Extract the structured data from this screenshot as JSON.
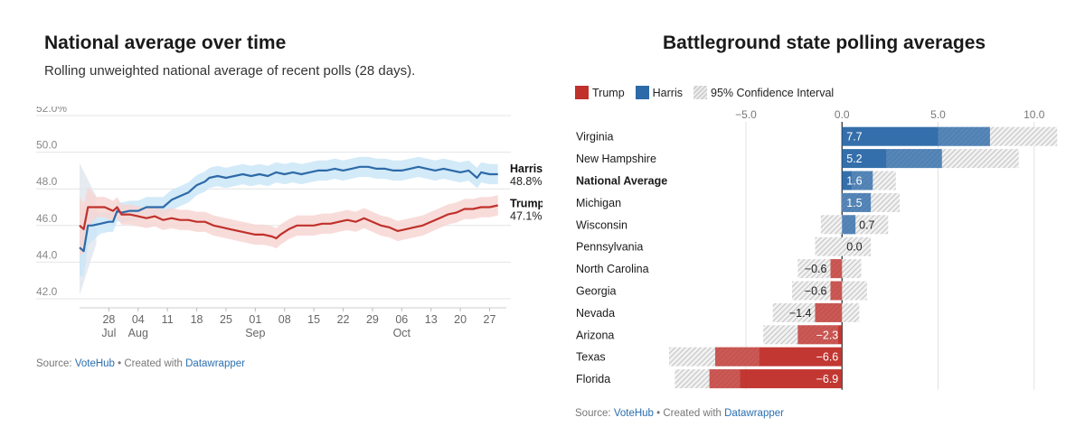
{
  "left": {
    "title": "National average over time",
    "subtitle": "Rolling unweighted national average of recent polls (28 days).",
    "source": {
      "prefix": "Source: ",
      "source_name": "VoteHub",
      "middle": " • Created with ",
      "tool": "Datawrapper"
    }
  },
  "right": {
    "title": "Battleground state polling averages",
    "legend": {
      "trump": "Trump",
      "harris": "Harris",
      "ci": "95% Confidence Interval"
    },
    "source": {
      "prefix": "Source: ",
      "source_name": "VoteHub",
      "middle": " • Created with ",
      "tool": "Datawrapper"
    }
  },
  "chart_data": [
    {
      "type": "line",
      "title": "National average over time",
      "subtitle": "Rolling unweighted national average of recent polls (28 days).",
      "ylim": [
        42.0,
        52.0
      ],
      "y_ticks": [
        42.0,
        44.0,
        46.0,
        48.0,
        50.0,
        52.0
      ],
      "y_tick_labels": [
        "42.0",
        "44.0",
        "46.0",
        "48.0",
        "50.0",
        "52.0%"
      ],
      "xlim": [
        0,
        102
      ],
      "x_ticks": [
        {
          "day": 7,
          "label": "28",
          "sub": "Jul"
        },
        {
          "day": 14,
          "label": "04",
          "sub": "Aug"
        },
        {
          "day": 21,
          "label": "11",
          "sub": ""
        },
        {
          "day": 28,
          "label": "18",
          "sub": ""
        },
        {
          "day": 35,
          "label": "25",
          "sub": ""
        },
        {
          "day": 42,
          "label": "01",
          "sub": "Sep"
        },
        {
          "day": 49,
          "label": "08",
          "sub": ""
        },
        {
          "day": 56,
          "label": "15",
          "sub": ""
        },
        {
          "day": 63,
          "label": "22",
          "sub": ""
        },
        {
          "day": 70,
          "label": "29",
          "sub": ""
        },
        {
          "day": 77,
          "label": "06",
          "sub": "Oct"
        },
        {
          "day": 84,
          "label": "13",
          "sub": ""
        },
        {
          "day": 91,
          "label": "20",
          "sub": ""
        },
        {
          "day": 98,
          "label": "27",
          "sub": ""
        }
      ],
      "series": [
        {
          "name": "Harris",
          "color": "#2d6aa8",
          "band_color": "#cbe6f7",
          "end_label": "Harris",
          "end_value": "48.8%",
          "points": [
            [
              0,
              44.8
            ],
            [
              1,
              44.6
            ],
            [
              2,
              46.0
            ],
            [
              3,
              46.0
            ],
            [
              5,
              46.1
            ],
            [
              7,
              46.2
            ],
            [
              8,
              46.2
            ],
            [
              9,
              46.8
            ],
            [
              10,
              46.7
            ],
            [
              12,
              46.8
            ],
            [
              14,
              46.8
            ],
            [
              16,
              47.0
            ],
            [
              18,
              47.0
            ],
            [
              20,
              47.0
            ],
            [
              22,
              47.4
            ],
            [
              24,
              47.6
            ],
            [
              26,
              47.8
            ],
            [
              27,
              48.0
            ],
            [
              28,
              48.2
            ],
            [
              30,
              48.4
            ],
            [
              31,
              48.6
            ],
            [
              33,
              48.7
            ],
            [
              35,
              48.6
            ],
            [
              37,
              48.7
            ],
            [
              39,
              48.8
            ],
            [
              41,
              48.7
            ],
            [
              43,
              48.8
            ],
            [
              45,
              48.7
            ],
            [
              47,
              48.9
            ],
            [
              49,
              48.8
            ],
            [
              51,
              48.9
            ],
            [
              53,
              48.8
            ],
            [
              55,
              48.9
            ],
            [
              57,
              49.0
            ],
            [
              59,
              49.0
            ],
            [
              61,
              49.1
            ],
            [
              63,
              49.0
            ],
            [
              65,
              49.1
            ],
            [
              67,
              49.2
            ],
            [
              69,
              49.2
            ],
            [
              71,
              49.1
            ],
            [
              73,
              49.1
            ],
            [
              75,
              49.0
            ],
            [
              77,
              49.0
            ],
            [
              79,
              49.1
            ],
            [
              81,
              49.2
            ],
            [
              83,
              49.1
            ],
            [
              85,
              49.0
            ],
            [
              87,
              49.1
            ],
            [
              89,
              49.0
            ],
            [
              91,
              48.9
            ],
            [
              93,
              49.0
            ],
            [
              95,
              48.6
            ],
            [
              96,
              48.9
            ],
            [
              98,
              48.8
            ],
            [
              100,
              48.8
            ]
          ]
        },
        {
          "name": "Trump",
          "color": "#c0312b",
          "band_color": "#f7d6d3",
          "end_label": "Trump",
          "end_value": "47.1%",
          "points": [
            [
              0,
              46.0
            ],
            [
              1,
              45.8
            ],
            [
              2,
              47.0
            ],
            [
              4,
              47.0
            ],
            [
              6,
              47.0
            ],
            [
              8,
              46.8
            ],
            [
              9,
              47.0
            ],
            [
              10,
              46.6
            ],
            [
              12,
              46.6
            ],
            [
              14,
              46.5
            ],
            [
              16,
              46.4
            ],
            [
              18,
              46.5
            ],
            [
              20,
              46.3
            ],
            [
              22,
              46.4
            ],
            [
              24,
              46.3
            ],
            [
              26,
              46.3
            ],
            [
              28,
              46.2
            ],
            [
              30,
              46.2
            ],
            [
              32,
              46.0
            ],
            [
              34,
              45.9
            ],
            [
              36,
              45.8
            ],
            [
              38,
              45.7
            ],
            [
              40,
              45.6
            ],
            [
              42,
              45.5
            ],
            [
              44,
              45.5
            ],
            [
              46,
              45.4
            ],
            [
              47,
              45.3
            ],
            [
              48,
              45.5
            ],
            [
              50,
              45.8
            ],
            [
              52,
              46.0
            ],
            [
              54,
              46.0
            ],
            [
              56,
              46.0
            ],
            [
              58,
              46.1
            ],
            [
              60,
              46.1
            ],
            [
              62,
              46.2
            ],
            [
              64,
              46.3
            ],
            [
              66,
              46.2
            ],
            [
              68,
              46.4
            ],
            [
              70,
              46.2
            ],
            [
              72,
              46.0
            ],
            [
              74,
              45.9
            ],
            [
              76,
              45.7
            ],
            [
              78,
              45.8
            ],
            [
              80,
              45.9
            ],
            [
              82,
              46.0
            ],
            [
              84,
              46.2
            ],
            [
              86,
              46.4
            ],
            [
              88,
              46.6
            ],
            [
              90,
              46.7
            ],
            [
              92,
              46.9
            ],
            [
              94,
              46.9
            ],
            [
              96,
              47.0
            ],
            [
              98,
              47.0
            ],
            [
              100,
              47.1
            ]
          ]
        }
      ]
    },
    {
      "type": "bar",
      "title": "Battleground state polling averages",
      "xlim": [
        -9.0,
        11.0
      ],
      "x_ticks": [
        -5.0,
        0.0,
        5.0,
        10.0
      ],
      "x_tick_labels": [
        "−5.0",
        "0.0",
        "5.0",
        "10.0"
      ],
      "legend": [
        "Trump",
        "Harris",
        "95% Confidence Interval"
      ],
      "categories": [
        "Virginia",
        "New Hampshire",
        "National Average",
        "Michigan",
        "Wisconsin",
        "Pennsylvania",
        "North Carolina",
        "Georgia",
        "Nevada",
        "Arizona",
        "Texas",
        "Florida"
      ],
      "bold_categories": [
        "National Average"
      ],
      "values": [
        7.7,
        5.2,
        1.6,
        1.5,
        0.7,
        0.0,
        -0.6,
        -0.6,
        -1.4,
        -2.3,
        -6.6,
        -6.9
      ],
      "value_labels": [
        "7.7",
        "5.2",
        "1.6",
        "1.5",
        "0.7",
        "0.0",
        "−0.6",
        "−0.6",
        "−1.4",
        "−2.3",
        "−6.6",
        "−6.9"
      ],
      "ci_low": [
        5.0,
        2.3,
        0.5,
        0.0,
        -1.1,
        -1.4,
        -2.3,
        -2.6,
        -3.6,
        -4.1,
        -9.0,
        -8.7
      ],
      "ci_high": [
        11.2,
        9.2,
        2.8,
        3.0,
        2.4,
        1.5,
        1.0,
        1.3,
        0.9,
        -0.2,
        -4.3,
        -5.3
      ],
      "colors": {
        "trump": "#c0312b",
        "harris": "#2d6aa8"
      }
    }
  ]
}
